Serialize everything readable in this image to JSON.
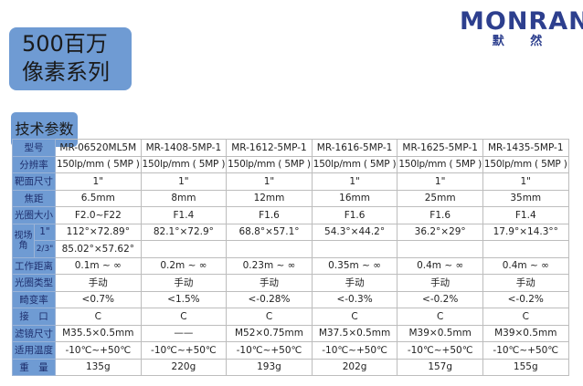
{
  "header": {
    "title_line1": "500百万",
    "title_line2": "像素系列",
    "section": "技术参数",
    "logo_en": "MONRAN",
    "logo_cn": "默 然"
  },
  "colors": {
    "label_bg": "#6f9bd3",
    "logo": "#2d3f8e"
  },
  "table": {
    "model_label": "型号",
    "models": [
      "MR-06520ML5M",
      "MR-1408-5MP-1",
      "MR-1612-5MP-1",
      "MR-1616-5MP-1",
      "MR-1625-5MP-1",
      "MR-1435-5MP-1"
    ],
    "fov_label": "视场角",
    "fov_sub": [
      "1\"",
      "2/3\""
    ],
    "fov_1": [
      "112°×72.89°",
      "82.1°×72.9°",
      "68.8°×57.1°",
      "54.3°×44.2°",
      "36.2°×29°",
      "17.9°×14.3°°"
    ],
    "fov_23": [
      "85.02°×57.62°",
      "",
      "",
      "",
      "",
      ""
    ],
    "rows": [
      {
        "label": "分辨率",
        "values": [
          "150lp/mm ( 5MP )",
          "150lp/mm ( 5MP )",
          "150lp/mm ( 5MP )",
          "150lp/mm ( 5MP )",
          "150lp/mm ( 5MP )",
          "150lp/mm ( 5MP )"
        ]
      },
      {
        "label": "靶面尺寸",
        "values": [
          "1\"",
          "1\"",
          "1\"",
          "1\"",
          "1\"",
          "1\""
        ]
      },
      {
        "label": "焦距",
        "values": [
          "6.5mm",
          "8mm",
          "12mm",
          "16mm",
          "25mm",
          "35mm"
        ]
      },
      {
        "label": "光圈大小",
        "values": [
          "F2.0~F22",
          "F1.4",
          "F1.6",
          "F1.6",
          "F1.6",
          "F1.4"
        ]
      }
    ],
    "rows2": [
      {
        "label": "工作距离",
        "values": [
          "0.1m ~ ∞",
          "0.2m ~ ∞",
          "0.23m ~ ∞",
          "0.35m ~ ∞",
          "0.4m ~ ∞",
          "0.4m ~ ∞"
        ]
      },
      {
        "label": "光圈类型",
        "values": [
          "手动",
          "手动",
          "手动",
          "手动",
          "手动",
          "手动"
        ]
      },
      {
        "label": "畸变率",
        "values": [
          "<0.7%",
          "<1.5%",
          "<-0.28%",
          "<-0.3%",
          "<-0.2%",
          "<-0.2%"
        ]
      },
      {
        "label": "接　口",
        "values": [
          "C",
          "C",
          "C",
          "C",
          "C",
          "C"
        ]
      },
      {
        "label": "滤镜尺寸",
        "values": [
          "M35.5×0.5mm",
          "——",
          "M52×0.75mm",
          "M37.5×0.5mm",
          "M39×0.5mm",
          "M39×0.5mm"
        ]
      },
      {
        "label": "适用温度",
        "values": [
          "-10℃~+50℃",
          "-10℃~+50℃",
          "-10℃~+50℃",
          "-10℃~+50℃",
          "-10℃~+50℃",
          "-10℃~+50℃"
        ]
      },
      {
        "label": "重　量",
        "values": [
          "135g",
          "220g",
          "193g",
          "202g",
          "157g",
          "155g"
        ]
      }
    ]
  }
}
